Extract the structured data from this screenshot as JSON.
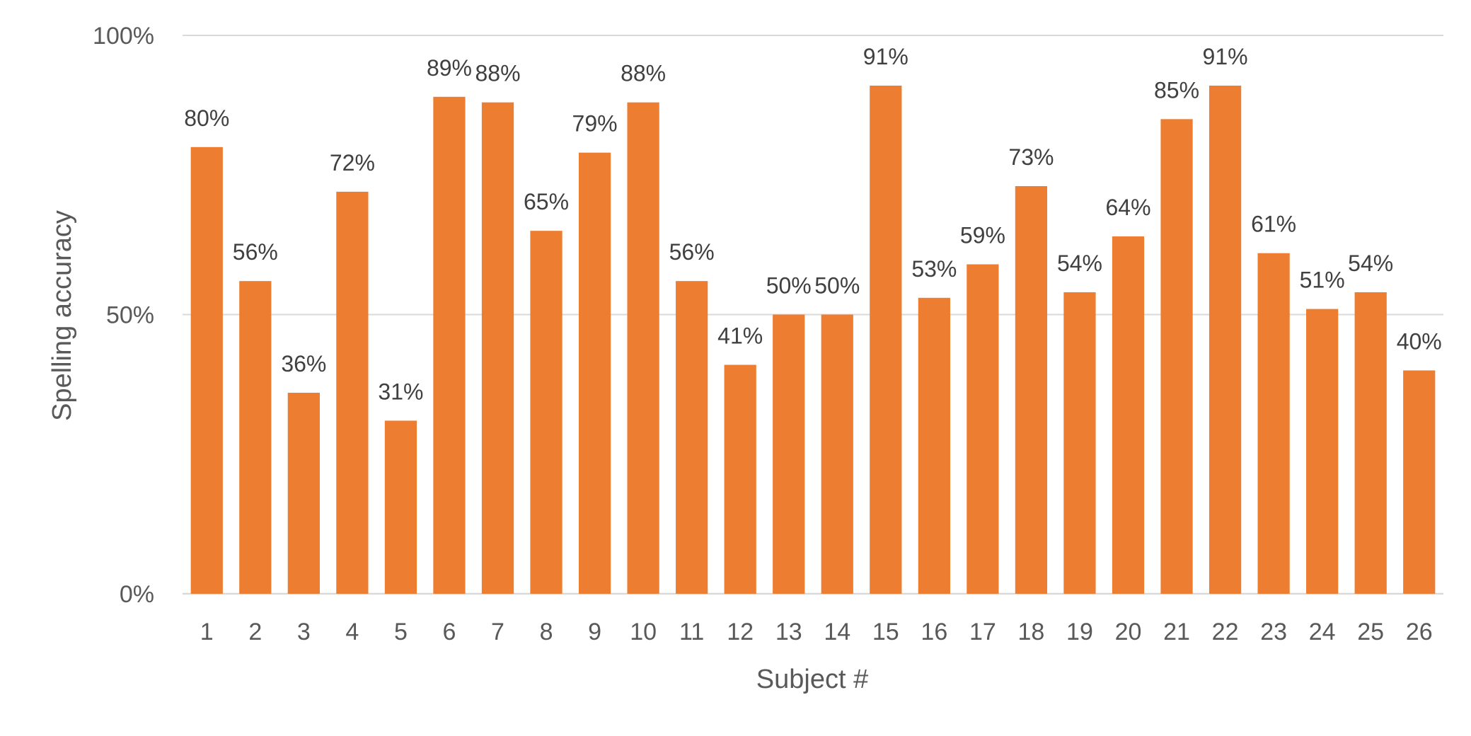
{
  "chart_data": {
    "type": "bar",
    "title": "",
    "xlabel": "Subject #",
    "ylabel": "Spelling accuracy",
    "categories": [
      "1",
      "2",
      "3",
      "4",
      "5",
      "6",
      "7",
      "8",
      "9",
      "10",
      "11",
      "12",
      "13",
      "14",
      "15",
      "16",
      "17",
      "18",
      "19",
      "20",
      "21",
      "22",
      "23",
      "24",
      "25",
      "26"
    ],
    "values": [
      80,
      56,
      36,
      72,
      31,
      89,
      88,
      65,
      79,
      88,
      56,
      41,
      50,
      50,
      91,
      53,
      59,
      73,
      54,
      64,
      85,
      91,
      61,
      51,
      54,
      40
    ],
    "data_labels": [
      "80%",
      "56%",
      "36%",
      "72%",
      "31%",
      "89%",
      "88%",
      "65%",
      "79%",
      "88%",
      "56%",
      "41%",
      "50%",
      "50%",
      "91%",
      "53%",
      "59%",
      "73%",
      "54%",
      "64%",
      "85%",
      "91%",
      "61%",
      "51%",
      "54%",
      "40%"
    ],
    "y_ticks": [
      0,
      50,
      100
    ],
    "y_tick_labels": [
      "0%",
      "50%",
      "100%"
    ],
    "ylim": [
      0,
      100
    ],
    "grid": true,
    "legend": "none",
    "bar_color": "#ed7d31"
  }
}
